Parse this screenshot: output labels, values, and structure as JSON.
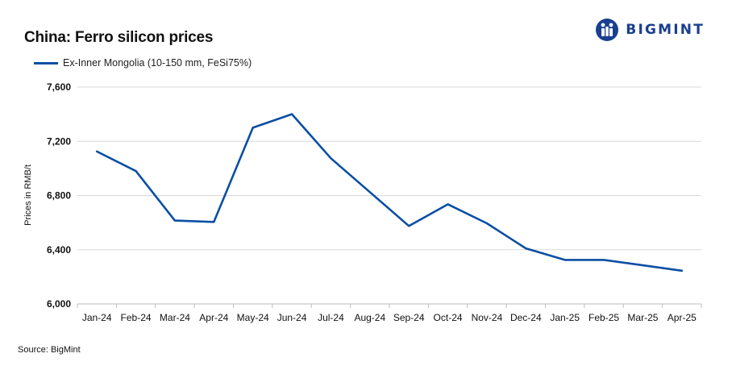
{
  "header": {
    "title": "China: Ferro silicon prices"
  },
  "logo": {
    "text": "BIGMINT",
    "color": "#1b3f8f"
  },
  "footer": {
    "source": "Source:  BigMint"
  },
  "chart_data": {
    "type": "line",
    "title": "China: Ferro silicon prices",
    "ylabel": "Prices in RMB/t",
    "xlabel": "",
    "categories": [
      "Jan-24",
      "Feb-24",
      "Mar-24",
      "Apr-24",
      "May-24",
      "Jun-24",
      "Jul-24",
      "Aug-24",
      "Sep-24",
      "Oct-24",
      "Nov-24",
      "Dec-24",
      "Jan-25",
      "Feb-25",
      "Mar-25",
      "Apr-25"
    ],
    "series": [
      {
        "name": "Ex-Inner Mongolia (10-150 mm, FeSi75%)",
        "color": "#0b4fa3",
        "values": [
          7125,
          6980,
          6615,
          6605,
          7300,
          7400,
          7075,
          6825,
          6575,
          6735,
          6595,
          6410,
          6325,
          6325,
          6285,
          6245
        ]
      }
    ],
    "ylim": [
      6000,
      7600
    ],
    "yticks": [
      6000,
      6400,
      6800,
      7200,
      7600
    ],
    "ytick_labels": [
      "6,000",
      "6,400",
      "6,800",
      "7,200",
      "7,600"
    ],
    "grid": true,
    "legend_position": "top-left"
  }
}
